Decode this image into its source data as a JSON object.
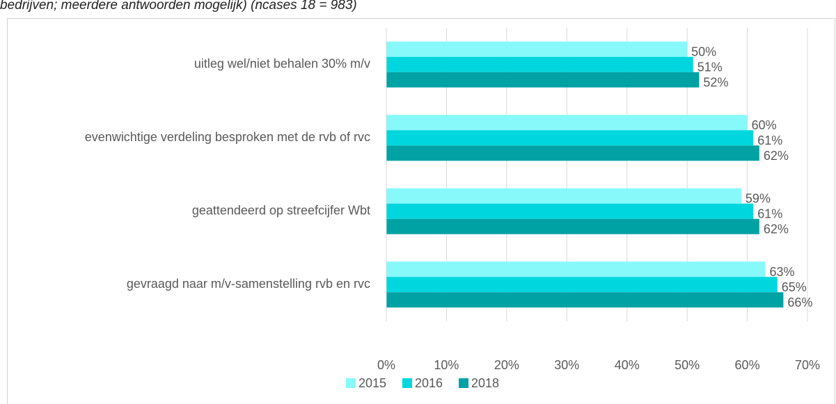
{
  "chart_data": {
    "type": "hbar",
    "title": "bedrijven; meerdere antwoorden mogelijk) (ncases 18 = 983)",
    "categories": [
      "uitleg wel/niet behalen 30% m/v",
      "evenwichtige verdeling besproken met de rvb of rvc",
      "geattendeerd op streefcijfer Wbt",
      "gevraagd naar m/v-samenstelling rvb en rvc"
    ],
    "series": [
      {
        "name": "2015",
        "color": "#87f9fb",
        "values": [
          50,
          60,
          59,
          63
        ],
        "value_labels": [
          "50%",
          "60%",
          "59%",
          "63%"
        ]
      },
      {
        "name": "2016",
        "color": "#00d6de",
        "values": [
          51,
          61,
          61,
          65
        ],
        "value_labels": [
          "51%",
          "61%",
          "61%",
          "65%"
        ]
      },
      {
        "name": "2018",
        "color": "#00a2a4",
        "values": [
          52,
          62,
          62,
          66
        ],
        "value_labels": [
          "52%",
          "62%",
          "62%",
          "66%"
        ]
      }
    ],
    "xlim": [
      0,
      70
    ],
    "xticks": [
      {
        "value": 0,
        "label": "0%"
      },
      {
        "value": 10,
        "label": "10%"
      },
      {
        "value": 20,
        "label": "20%"
      },
      {
        "value": 30,
        "label": "30%"
      },
      {
        "value": 40,
        "label": "40%"
      },
      {
        "value": 50,
        "label": "50%"
      },
      {
        "value": 60,
        "label": "60%"
      },
      {
        "value": 70,
        "label": "70%"
      }
    ],
    "grid": true,
    "legend": "bottom"
  }
}
